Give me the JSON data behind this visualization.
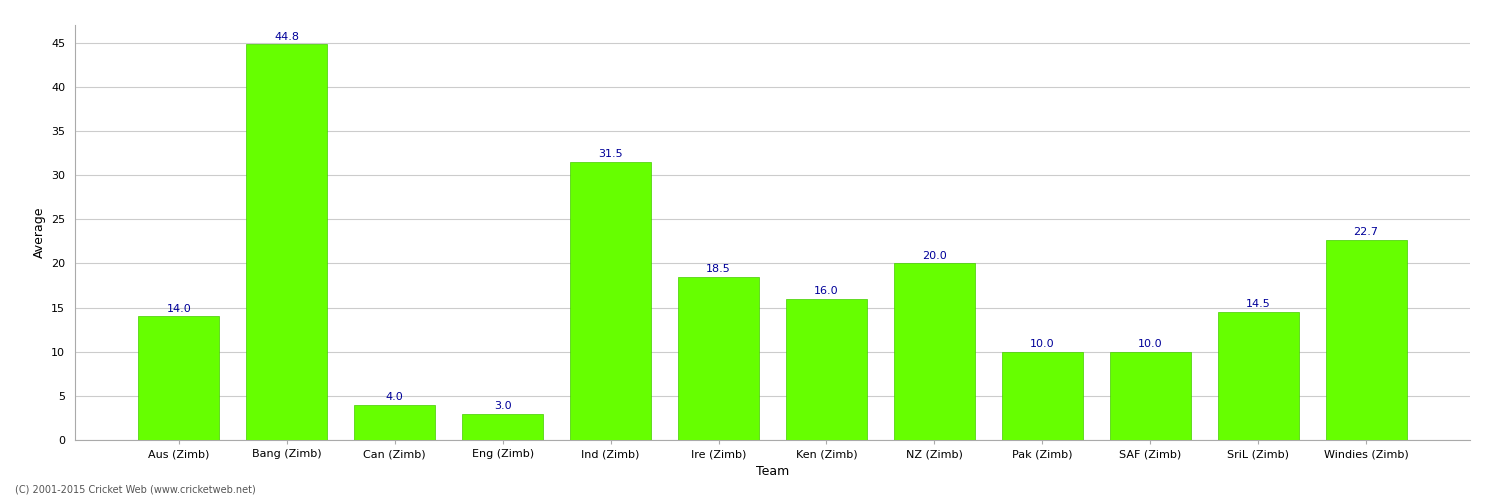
{
  "categories": [
    "Aus (Zimb)",
    "Bang (Zimb)",
    "Can (Zimb)",
    "Eng (Zimb)",
    "Ind (Zimb)",
    "Ire (Zimb)",
    "Ken (Zimb)",
    "NZ (Zimb)",
    "Pak (Zimb)",
    "SAF (Zimb)",
    "SriL (Zimb)",
    "Windies (Zimb)"
  ],
  "values": [
    14.0,
    44.8,
    4.0,
    3.0,
    31.5,
    18.5,
    16.0,
    20.0,
    10.0,
    10.0,
    14.5,
    22.7
  ],
  "bar_color": "#66ff00",
  "bar_edge_color": "#44cc00",
  "label_color": "#000099",
  "ylabel": "Average",
  "xlabel": "Team",
  "ylim": [
    0,
    47
  ],
  "yticks": [
    0,
    5,
    10,
    15,
    20,
    25,
    30,
    35,
    40,
    45
  ],
  "background_color": "#ffffff",
  "grid_color": "#cccccc",
  "footnote": "(C) 2001-2015 Cricket Web (www.cricketweb.net)",
  "label_fontsize": 8,
  "axis_label_fontsize": 9,
  "tick_fontsize": 8
}
